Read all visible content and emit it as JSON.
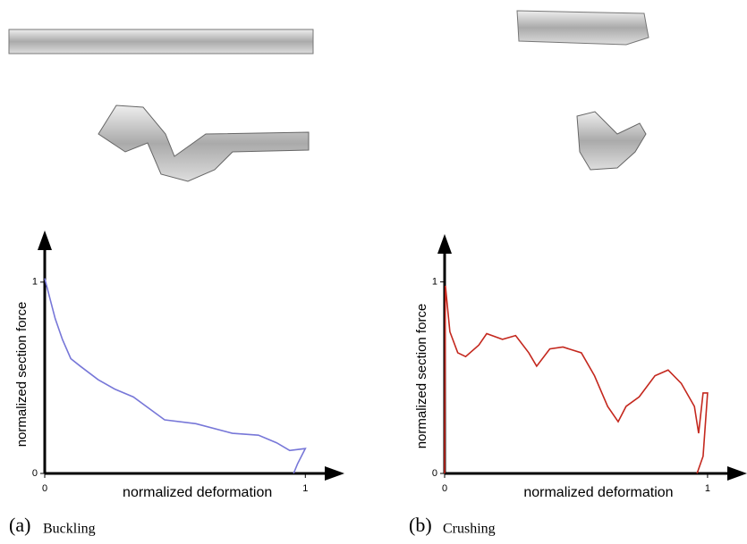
{
  "chart_data": [
    {
      "type": "line",
      "caption_label": "(a)",
      "caption": "Buckling",
      "xlabel": "normalized deformation",
      "ylabel": "normalized section force",
      "xlim": [
        0,
        1.15
      ],
      "ylim": [
        0,
        1.27
      ],
      "xticks": [
        0,
        1
      ],
      "yticks": [
        0,
        1
      ],
      "series": [
        {
          "color": "#7777d8",
          "x": [
            0,
            0.017,
            0.04,
            0.068,
            0.1,
            0.137,
            0.205,
            0.27,
            0.34,
            0.46,
            0.58,
            0.72,
            0.82,
            0.89,
            0.94,
            1.0,
            0.97,
            0.955
          ],
          "values": [
            1.02,
            0.93,
            0.81,
            0.7,
            0.6,
            0.56,
            0.49,
            0.44,
            0.4,
            0.28,
            0.26,
            0.21,
            0.2,
            0.16,
            0.12,
            0.13,
            0.05,
            0
          ]
        }
      ]
    },
    {
      "type": "line",
      "caption_label": "(b)",
      "caption": "Crushing",
      "xlabel": "normalized deformation",
      "ylabel": "normalized section force",
      "xlim": [
        0,
        1.15
      ],
      "ylim": [
        0,
        1.25
      ],
      "xticks": [
        0,
        1
      ],
      "yticks": [
        0,
        1
      ],
      "series": [
        {
          "color": "#c4281e",
          "x": [
            0,
            0.003,
            0.02,
            0.05,
            0.08,
            0.13,
            0.16,
            0.22,
            0.27,
            0.32,
            0.35,
            0.4,
            0.45,
            0.52,
            0.57,
            0.62,
            0.66,
            0.69,
            0.74,
            0.8,
            0.85,
            0.9,
            0.95,
            0.966,
            0.983,
            1.0,
            0.983,
            0.96
          ],
          "values": [
            0,
            0.98,
            0.74,
            0.63,
            0.61,
            0.67,
            0.73,
            0.7,
            0.72,
            0.63,
            0.56,
            0.65,
            0.66,
            0.63,
            0.51,
            0.35,
            0.27,
            0.35,
            0.4,
            0.51,
            0.54,
            0.47,
            0.35,
            0.21,
            0.42,
            0.42,
            0.09,
            0
          ]
        }
      ]
    }
  ]
}
